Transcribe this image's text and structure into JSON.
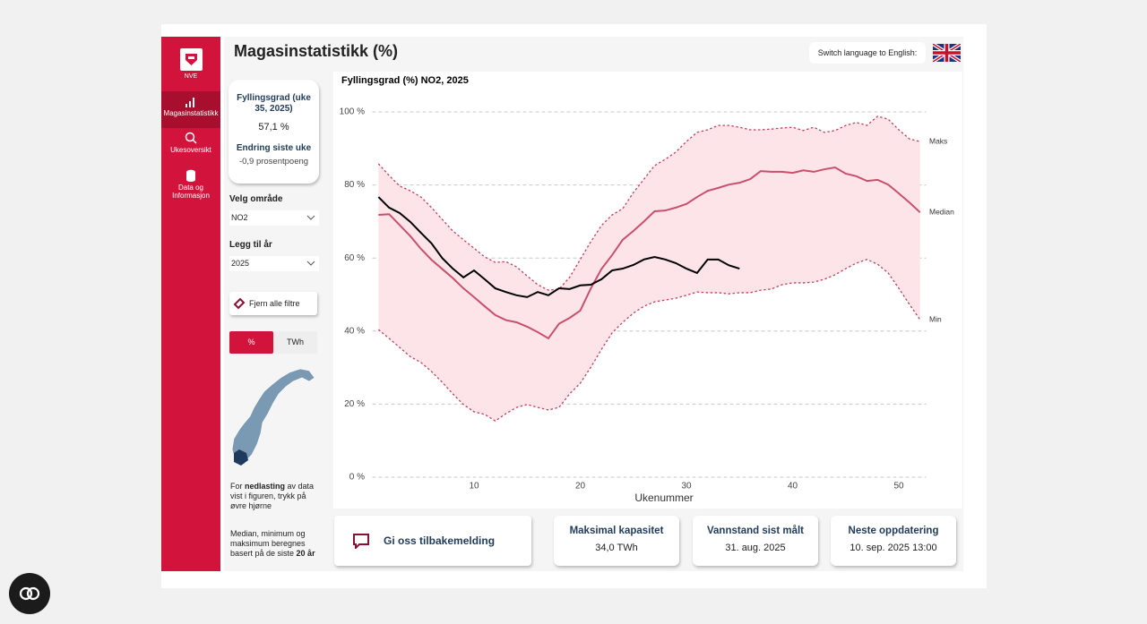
{
  "sidebar": {
    "logo": "NVE",
    "nav": [
      "Magasinstatistikk",
      "Ukesoversikt",
      "Data og Informasjon"
    ]
  },
  "header": {
    "title": "Magasinstatistikk (%)",
    "language": "Switch language to English:"
  },
  "kpi": {
    "label": "Fyllingsgrad (uke 35, 2025)",
    "value": "57,1 %",
    "change_label": "Endring siste uke",
    "change_value": "-0,9 prosentpoeng"
  },
  "filters": {
    "area_label": "Velg område",
    "area": "NO2",
    "year_label": "Legg til år",
    "year": "2025",
    "clear": "Fjern alle filtre",
    "units": [
      "%",
      "TWh"
    ]
  },
  "notes": [
    {
      "parts": [
        "For ",
        "nedlasting",
        " av data vist i figuren, trykk på øvre hjørne"
      ]
    },
    {
      "parts": [
        "Median, minimum og maksimum beregnes basert på de siste ",
        "20 år"
      ]
    }
  ],
  "footer": {
    "feedback": "Gi oss tilbakemelding",
    "cards": [
      {
        "label": "Maksimal kapasitet",
        "value": "34,0 TWh"
      },
      {
        "label": "Vannstand sist målt",
        "value": "31. aug. 2025"
      },
      {
        "label": "Neste oppdatering",
        "value": "10. sep. 2025 13:00"
      }
    ]
  },
  "chart_data": {
    "type": "line",
    "title": "Fyllingsgrad (%) NO2, 2025",
    "x_label": "Ukenummer",
    "x": [
      1,
      2,
      3,
      4,
      5,
      6,
      7,
      8,
      9,
      10,
      11,
      12,
      13,
      14,
      15,
      16,
      17,
      18,
      19,
      20,
      21,
      22,
      23,
      24,
      25,
      26,
      27,
      28,
      29,
      30,
      31,
      32,
      33,
      34,
      35,
      36,
      37,
      38,
      39,
      40,
      41,
      42,
      43,
      44,
      45,
      46,
      47,
      48,
      49,
      50,
      51,
      52
    ],
    "xlim": [
      0,
      53
    ],
    "xticks": [
      10,
      20,
      30,
      40,
      50
    ],
    "ylim": [
      0,
      100
    ],
    "yticks": [
      {
        "value": 0,
        "label": "0 %"
      },
      {
        "value": 20,
        "label": "20 %"
      },
      {
        "value": 40,
        "label": "40 %"
      },
      {
        "value": 60,
        "label": "60 %"
      },
      {
        "value": 80,
        "label": "80 %"
      },
      {
        "value": 100,
        "label": "100 %"
      }
    ],
    "grid": true,
    "band_color": "#fce4e9",
    "series": [
      {
        "name": "Maks",
        "color": "#c4405c",
        "dash": true,
        "values": [
          85.8,
          82.6,
          79.7,
          78.4,
          76.7,
          73.8,
          70.6,
          67.4,
          65,
          62.7,
          60.3,
          58.8,
          59,
          57.6,
          55.1,
          52.7,
          51.2,
          51.5,
          54.7,
          59.6,
          64.5,
          68.9,
          71.8,
          73.5,
          77.9,
          81.6,
          85.3,
          87,
          89,
          91.9,
          94.4,
          95.1,
          96.3,
          96.3,
          95.8,
          95.1,
          95.1,
          95.3,
          95.6,
          95.8,
          94.9,
          95.8,
          94.4,
          94.9,
          96.3,
          97.1,
          96.3,
          98.8,
          98,
          95.1,
          92.6,
          91.9
        ]
      },
      {
        "name": "Median",
        "color": "#c9506a",
        "dash": false,
        "values": [
          71.8,
          72,
          69,
          66,
          62.5,
          59.5,
          57,
          54.5,
          51.7,
          49.3,
          46.8,
          44.4,
          43,
          42.4,
          41.2,
          39.7,
          38,
          42,
          43.6,
          45.6,
          51.7,
          57,
          60.8,
          65,
          67.4,
          70,
          72.8,
          73,
          73.8,
          74.8,
          76.7,
          78.4,
          79.2,
          80.1,
          80.6,
          81.6,
          83.8,
          83.6,
          83.6,
          83.3,
          84,
          83.6,
          84.3,
          84.8,
          83.1,
          82.4,
          81.1,
          81.4,
          80.1,
          77.7,
          75.2,
          72.5
        ]
      },
      {
        "name": "Min",
        "color": "#c4405c",
        "dash": true,
        "values": [
          40.4,
          38,
          35.5,
          33,
          31.4,
          28.9,
          26,
          22.8,
          19.9,
          17.9,
          17.2,
          15.4,
          17.4,
          19.1,
          19.9,
          19.1,
          18.4,
          19.1,
          22.8,
          25.7,
          30.1,
          35,
          39.5,
          42.4,
          44.9,
          46.8,
          48,
          48.5,
          49,
          49.8,
          50.7,
          50.5,
          50.5,
          50.2,
          50.5,
          50.5,
          51.2,
          51.5,
          52.7,
          53.2,
          53.2,
          53.4,
          54.2,
          55.4,
          57.1,
          58.6,
          59.6,
          58.3,
          55.9,
          51.7,
          47.3,
          43.1
        ]
      },
      {
        "name": "2025",
        "color": "#000000",
        "dash": false,
        "values": [
          76.7,
          73.8,
          72.3,
          69.9,
          66.9,
          64,
          60,
          57.1,
          54.7,
          56.6,
          54.2,
          51.7,
          50.7,
          49.8,
          49.3,
          50.7,
          49.8,
          51.7,
          51.5,
          52.5,
          52.7,
          54.2,
          56.6,
          57.1,
          58.1,
          59.6,
          60.3,
          59.6,
          58.6,
          57.1,
          55.9,
          59.6,
          59.6,
          58,
          57.1,
          null,
          null,
          null,
          null,
          null,
          null,
          null,
          null,
          null,
          null,
          null,
          null,
          null,
          null,
          null,
          null,
          null
        ]
      }
    ]
  }
}
